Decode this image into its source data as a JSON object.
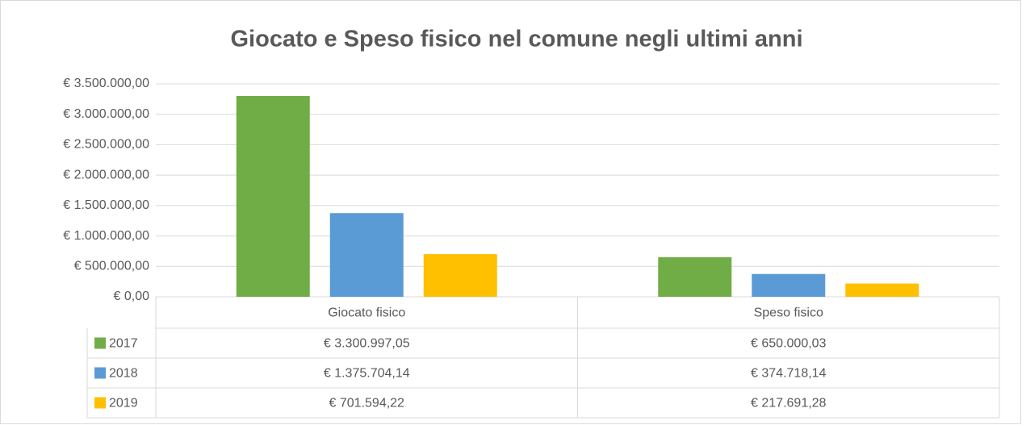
{
  "chart_data": {
    "type": "bar",
    "title": "Giocato e Speso fisico nel comune negli ultimi anni",
    "categories": [
      "Giocato fisico",
      "Speso fisico"
    ],
    "series": [
      {
        "name": "2017",
        "color": "#70ad47",
        "values": [
          3300997.05,
          650000.03
        ],
        "value_labels": [
          "€ 3.300.997,05",
          "€ 650.000,03"
        ]
      },
      {
        "name": "2018",
        "color": "#5b9bd5",
        "values": [
          1375704.14,
          374718.14
        ],
        "value_labels": [
          "€ 1.375.704,14",
          "€ 374.718,14"
        ]
      },
      {
        "name": "2019",
        "color": "#ffc000",
        "values": [
          701594.22,
          217691.28
        ],
        "value_labels": [
          "€ 701.594,22",
          "€ 217.691,28"
        ]
      }
    ],
    "ylim": [
      0,
      3500000
    ],
    "yticks": [
      {
        "value": 0,
        "label": "€ 0,00"
      },
      {
        "value": 500000,
        "label": "€ 500.000,00"
      },
      {
        "value": 1000000,
        "label": "€ 1.000.000,00"
      },
      {
        "value": 1500000,
        "label": "€ 1.500.000,00"
      },
      {
        "value": 2000000,
        "label": "€ 2.000.000,00"
      },
      {
        "value": 2500000,
        "label": "€ 2.500.000,00"
      },
      {
        "value": 3000000,
        "label": "€ 3.000.000,00"
      },
      {
        "value": 3500000,
        "label": "€ 3.500.000,00"
      }
    ],
    "grid": true
  }
}
